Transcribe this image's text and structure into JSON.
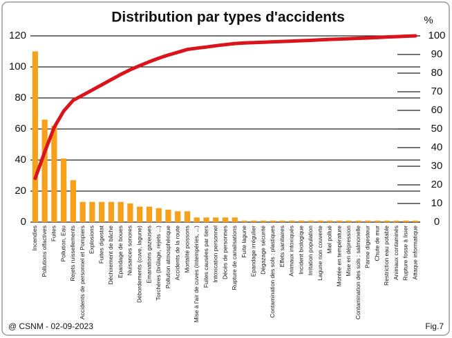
{
  "chart_data": {
    "type": "pareto",
    "title": "Distribution par types d'accidents",
    "y2_label": "%",
    "footer_left": "@ CSNM - 02-09-2023",
    "footer_right": "Fig.7",
    "categories": [
      "Incendies",
      "Pollutions olfactives",
      "Fuites",
      "Pollution, Eau",
      "Rejets ruissellements",
      "Accidents de personnel et Pompiers",
      "Explosions",
      "Fuites digestat",
      "Déchirement de bâche",
      "Epandage de boues",
      "Nuisances sonores",
      "Débordements (cuve, lagune)",
      "Emanations gazeuses",
      "Torchères (brûlage, rejets ...)",
      "Pollution atmosphérique",
      "Accidents de la route",
      "Mortalité poissons",
      "Mise à l'air de cuves (intempéries, ...)",
      "Fuites causées par tiers",
      "Intoxication personnel",
      "Décès de personnes",
      "Rupture de canalisations",
      "Fuite lagune",
      "Epandage irrégulier",
      "Dégazage sécurité",
      "Contamination des sols : plastiques",
      "Effets sanitaires",
      "Animaux intoxiqués",
      "Incident biologique",
      "Irritation population",
      "Lagune non couverte",
      "Miel pollué",
      "Montée en température",
      "Mise en dépression",
      "Contamination des sols : salmonelle",
      "Panne digesteur",
      "Chute de mur",
      "Restriction eau potable",
      "Animaux contaminés",
      "Rupture fosse à lisier",
      "Attaque informatique"
    ],
    "series": [
      {
        "color": "#f5a11c",
        "values": [
          110,
          66,
          62,
          41,
          27,
          13,
          13,
          13,
          13,
          13,
          12,
          10,
          10,
          9,
          8,
          7,
          7,
          3,
          3,
          3,
          3,
          3,
          1,
          1,
          1,
          1,
          1,
          1,
          1,
          1,
          1,
          1,
          1,
          1,
          1,
          1,
          1,
          1,
          1,
          1,
          1
        ]
      },
      {
        "color": "#d9141c",
        "axis": "y2",
        "values": [
          23.5,
          37.6,
          50.9,
          59.6,
          65.4,
          68.2,
          70.9,
          73.7,
          76.5,
          79.3,
          81.8,
          84.0,
          86.1,
          88.0,
          89.7,
          91.2,
          92.7,
          93.4,
          94.0,
          94.7,
          95.3,
          95.9,
          96.2,
          96.4,
          96.6,
          96.8,
          97.0,
          97.2,
          97.4,
          97.6,
          97.9,
          98.1,
          98.3,
          98.5,
          98.7,
          98.9,
          99.1,
          99.4,
          99.6,
          99.8,
          100
        ]
      }
    ],
    "ylim": [
      0,
      120
    ],
    "yticks": [
      0,
      20,
      40,
      60,
      80,
      100,
      120
    ],
    "y2lim": [
      0,
      100
    ],
    "y2ticks": [
      0,
      10,
      20,
      30,
      40,
      50,
      60,
      70,
      80,
      90,
      100
    ],
    "grid": true
  }
}
